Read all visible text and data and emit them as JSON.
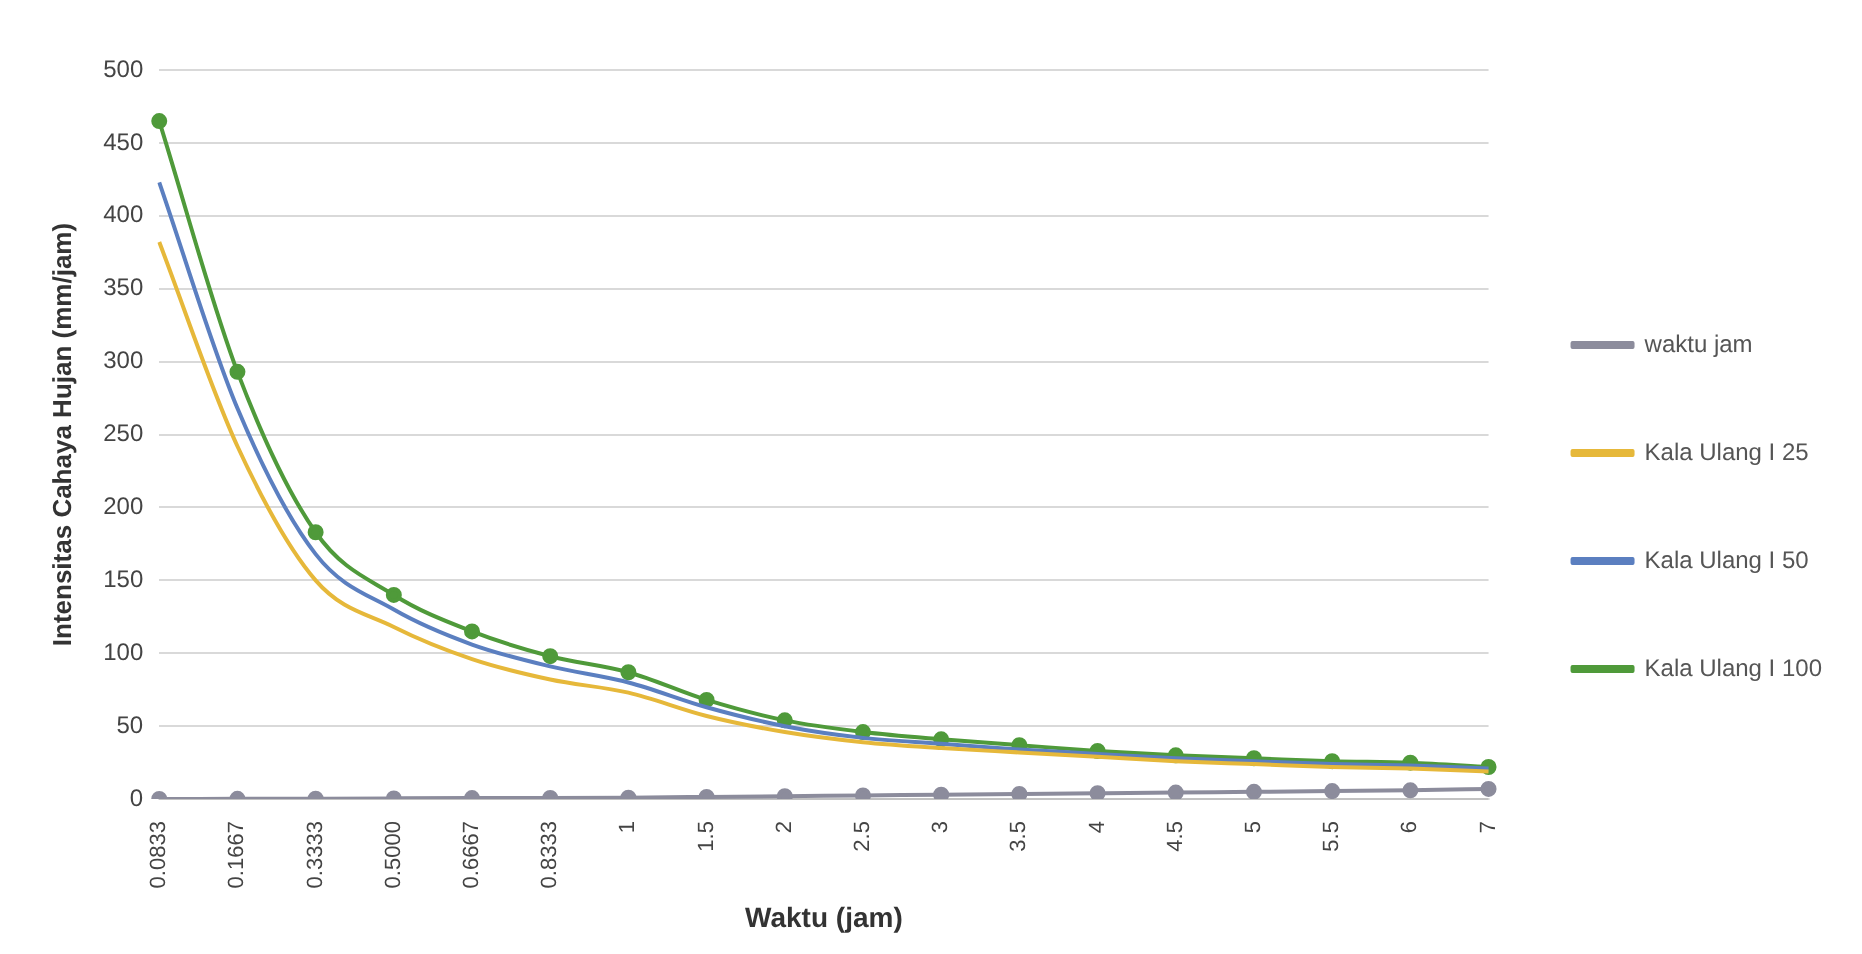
{
  "chart_data": {
    "type": "line",
    "xlabel": "Waktu (jam)",
    "ylabel": "Intensitas Cahaya Hujan (mm/jam)",
    "categories": [
      "0.0833",
      "0.1667",
      "0.3333",
      "0.5000",
      "0.6667",
      "0.8333",
      "1",
      "1.5",
      "2",
      "2.5",
      "3",
      "3.5",
      "4",
      "4.5",
      "5",
      "5.5",
      "6",
      "7"
    ],
    "series": [
      {
        "name": "waktu jam",
        "color": "#8c8c9c",
        "marker": "circle",
        "values": [
          0.1,
          0.2,
          0.3,
          0.5,
          0.7,
          0.8,
          1,
          1.5,
          2,
          2.5,
          3,
          3.5,
          4,
          4.5,
          5,
          5.5,
          6,
          7
        ]
      },
      {
        "name": "Kala Ulang I 25",
        "color": "#e6b83a",
        "marker": "none",
        "values": [
          382,
          242,
          150,
          118,
          96,
          82,
          73,
          57,
          46,
          39,
          35,
          32,
          29,
          26,
          24,
          22,
          21,
          19
        ]
      },
      {
        "name": "Kala Ulang I 50",
        "color": "#5b7fc0",
        "marker": "none",
        "values": [
          423,
          268,
          168,
          130,
          106,
          91,
          80,
          63,
          50,
          42,
          38,
          34,
          31,
          28,
          26,
          24,
          23,
          21
        ]
      },
      {
        "name": "Kala Ulang I 100",
        "color": "#4f9a3a",
        "marker": "circle",
        "values": [
          465,
          293,
          183,
          140,
          115,
          98,
          87,
          68,
          54,
          46,
          41,
          37,
          33,
          30,
          28,
          26,
          25,
          22
        ]
      }
    ],
    "ylim": [
      0,
      500
    ],
    "yticks": [
      0,
      50,
      100,
      150,
      200,
      250,
      300,
      350,
      400,
      450,
      500
    ],
    "grid": "y",
    "legend": "right"
  }
}
